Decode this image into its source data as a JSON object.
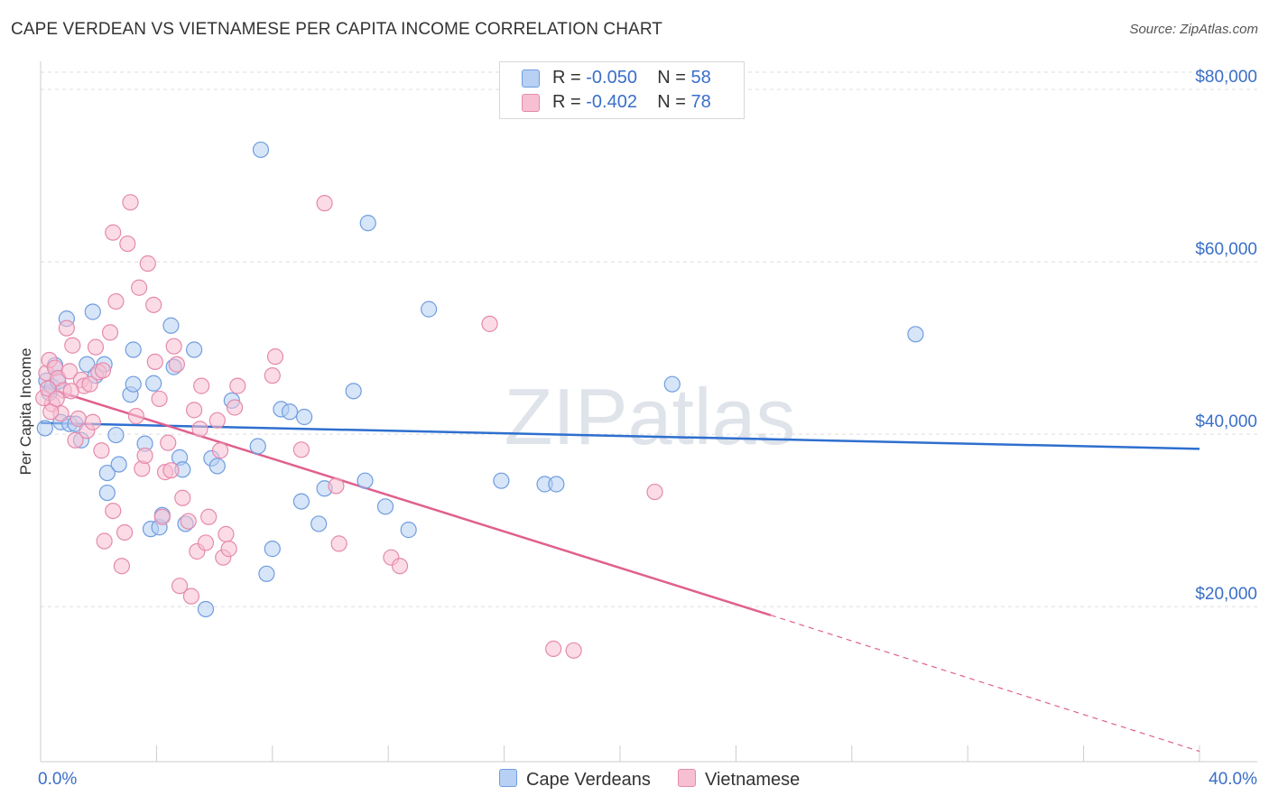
{
  "title": "CAPE VERDEAN VS VIETNAMESE PER CAPITA INCOME CORRELATION CHART",
  "source": "Source: ZipAtlas.com",
  "watermark": "ZIPatlas",
  "colors": {
    "blue_fill": "#b7d0f3",
    "blue_stroke": "#6f9de0",
    "blue_line": "#2e6fcf",
    "pink_fill": "#f7c0d2",
    "pink_stroke": "#e58aac",
    "pink_line": "#e0608e",
    "axis_text": "#3a6fc8"
  },
  "legend": {
    "rows": [
      {
        "r_label": "R = ",
        "r_value": "-0.050",
        "n_label": "N = ",
        "n_value": "58"
      },
      {
        "r_label": "R = ",
        "r_value": "-0.402",
        "n_label": "N = ",
        "n_value": "78"
      }
    ]
  },
  "chart_data": {
    "type": "scatter",
    "title": "CAPE VERDEAN VS VIETNAMESE PER CAPITA INCOME CORRELATION CHART",
    "xlabel": "",
    "ylabel": "Per Capita Income",
    "xlim": [
      0,
      40
    ],
    "ylim": [
      2000,
      82000
    ],
    "x_tick_labels": [
      "0.0%",
      "40.0%"
    ],
    "y_ticks": [
      20000,
      40000,
      60000,
      80000
    ],
    "y_tick_labels": [
      "$20,000",
      "$40,000",
      "$60,000",
      "$80,000"
    ],
    "grid": true,
    "legend_position": "top-center",
    "series": [
      {
        "name": "Cape Verdeans",
        "r": -0.05,
        "n": 58,
        "trend": {
          "x": [
            0,
            40
          ],
          "y": [
            41300,
            38300
          ]
        },
        "points": [
          [
            0.2,
            46200
          ],
          [
            0.3,
            44800
          ],
          [
            0.4,
            45500
          ],
          [
            0.5,
            48000
          ],
          [
            0.6,
            46100
          ],
          [
            0.7,
            41400
          ],
          [
            0.9,
            53400
          ],
          [
            1.0,
            41200
          ],
          [
            1.2,
            41200
          ],
          [
            1.4,
            39300
          ],
          [
            1.6,
            48100
          ],
          [
            1.8,
            54200
          ],
          [
            1.9,
            46800
          ],
          [
            2.2,
            48100
          ],
          [
            2.3,
            33200
          ],
          [
            2.3,
            35500
          ],
          [
            2.6,
            39900
          ],
          [
            2.7,
            36500
          ],
          [
            3.1,
            44600
          ],
          [
            3.2,
            49800
          ],
          [
            3.2,
            45800
          ],
          [
            3.6,
            38900
          ],
          [
            3.8,
            29000
          ],
          [
            3.9,
            45900
          ],
          [
            4.1,
            29200
          ],
          [
            4.2,
            30600
          ],
          [
            4.5,
            52600
          ],
          [
            4.6,
            47800
          ],
          [
            4.8,
            37300
          ],
          [
            4.9,
            35900
          ],
          [
            5.0,
            29600
          ],
          [
            5.3,
            49800
          ],
          [
            5.7,
            19700
          ],
          [
            5.9,
            37200
          ],
          [
            6.1,
            36300
          ],
          [
            6.6,
            43900
          ],
          [
            7.5,
            38600
          ],
          [
            7.6,
            73000
          ],
          [
            7.8,
            23800
          ],
          [
            8.0,
            26700
          ],
          [
            8.3,
            42900
          ],
          [
            8.6,
            42600
          ],
          [
            9.0,
            32200
          ],
          [
            9.1,
            42000
          ],
          [
            9.6,
            29600
          ],
          [
            9.8,
            33700
          ],
          [
            10.8,
            45000
          ],
          [
            11.2,
            34600
          ],
          [
            11.3,
            64500
          ],
          [
            11.9,
            31600
          ],
          [
            12.7,
            28900
          ],
          [
            13.4,
            54500
          ],
          [
            15.9,
            34600
          ],
          [
            17.4,
            34200
          ],
          [
            17.8,
            34200
          ],
          [
            21.8,
            45800
          ],
          [
            30.2,
            51600
          ],
          [
            0.15,
            40700
          ]
        ]
      },
      {
        "name": "Vietnamese",
        "r": -0.402,
        "n": 78,
        "trend": {
          "x": [
            0,
            25.2
          ],
          "y": [
            45600,
            19000
          ]
        },
        "trend_dashed": {
          "x": [
            25.2,
            40
          ],
          "y": [
            19000,
            3200
          ]
        },
        "points": [
          [
            0.2,
            47100
          ],
          [
            0.3,
            48600
          ],
          [
            0.4,
            43500
          ],
          [
            0.5,
            47700
          ],
          [
            0.6,
            46500
          ],
          [
            0.7,
            42400
          ],
          [
            0.8,
            45100
          ],
          [
            0.9,
            52300
          ],
          [
            1.0,
            47300
          ],
          [
            1.1,
            50300
          ],
          [
            1.2,
            39300
          ],
          [
            1.3,
            41800
          ],
          [
            1.4,
            46300
          ],
          [
            1.5,
            45600
          ],
          [
            1.6,
            40400
          ],
          [
            1.7,
            45800
          ],
          [
            1.8,
            41400
          ],
          [
            1.9,
            50100
          ],
          [
            2.0,
            47200
          ],
          [
            2.1,
            38100
          ],
          [
            2.2,
            27600
          ],
          [
            2.4,
            51800
          ],
          [
            2.5,
            31100
          ],
          [
            2.5,
            63400
          ],
          [
            2.6,
            55400
          ],
          [
            2.8,
            24700
          ],
          [
            2.9,
            28600
          ],
          [
            3.0,
            62100
          ],
          [
            3.1,
            66900
          ],
          [
            3.3,
            42100
          ],
          [
            3.4,
            57000
          ],
          [
            3.5,
            36000
          ],
          [
            3.6,
            37500
          ],
          [
            3.7,
            59800
          ],
          [
            3.9,
            55000
          ],
          [
            4.1,
            44100
          ],
          [
            4.2,
            30400
          ],
          [
            4.3,
            35600
          ],
          [
            4.4,
            39000
          ],
          [
            4.5,
            35800
          ],
          [
            4.6,
            50200
          ],
          [
            4.7,
            48100
          ],
          [
            4.8,
            22400
          ],
          [
            4.9,
            32600
          ],
          [
            5.1,
            29900
          ],
          [
            5.2,
            21200
          ],
          [
            5.3,
            42800
          ],
          [
            5.4,
            26400
          ],
          [
            5.5,
            40600
          ],
          [
            5.7,
            27400
          ],
          [
            5.8,
            30400
          ],
          [
            6.1,
            41600
          ],
          [
            6.2,
            38100
          ],
          [
            6.3,
            25700
          ],
          [
            6.4,
            28400
          ],
          [
            6.5,
            26700
          ],
          [
            6.7,
            43100
          ],
          [
            6.8,
            45600
          ],
          [
            8.0,
            46800
          ],
          [
            8.1,
            49000
          ],
          [
            9.0,
            38200
          ],
          [
            9.8,
            66800
          ],
          [
            10.2,
            34000
          ],
          [
            10.3,
            27300
          ],
          [
            12.1,
            25700
          ],
          [
            12.4,
            24700
          ],
          [
            15.5,
            52800
          ],
          [
            17.7,
            15100
          ],
          [
            18.4,
            14900
          ],
          [
            21.2,
            33300
          ],
          [
            0.1,
            44200
          ],
          [
            0.25,
            45300
          ],
          [
            0.35,
            42600
          ],
          [
            0.55,
            44100
          ],
          [
            1.05,
            45000
          ],
          [
            2.15,
            47400
          ],
          [
            3.95,
            48400
          ],
          [
            5.55,
            45600
          ]
        ]
      }
    ]
  }
}
